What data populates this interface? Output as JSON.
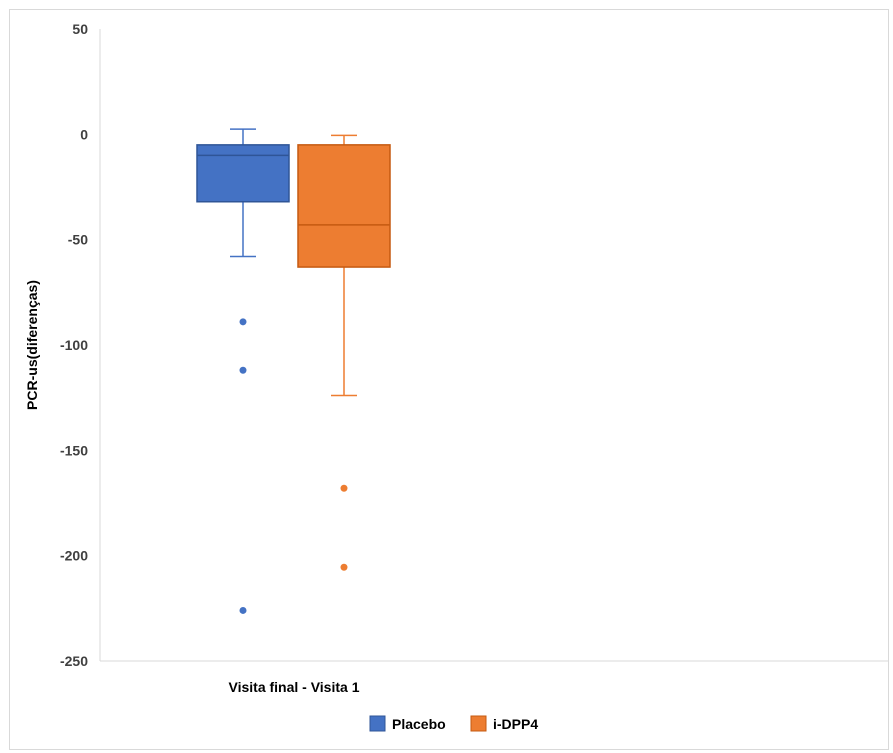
{
  "chart_data": {
    "type": "boxplot",
    "ylabel": "PCR-us(diferenças)",
    "ylim": [
      -250,
      50
    ],
    "yticks": [
      50,
      0,
      -50,
      -100,
      -150,
      -200,
      -250
    ],
    "categories": [
      "Visita final - Visita 1"
    ],
    "grid": false,
    "legend_position": "bottom",
    "series": [
      {
        "name": "Placebo",
        "color": "#4472c4",
        "stroke": "#2f5597",
        "whisker_low": -58,
        "q1": -32,
        "median": -10,
        "q3": -5,
        "whisker_high": 2.5,
        "outliers": [
          -89,
          -112,
          -226
        ]
      },
      {
        "name": "i-DPP4",
        "color": "#ed7d31",
        "stroke": "#c55a11",
        "whisker_low": -124,
        "q1": -63,
        "median": -43,
        "q3": -5,
        "whisker_high": -0.5,
        "outliers": [
          -168,
          -205.5
        ]
      }
    ]
  }
}
